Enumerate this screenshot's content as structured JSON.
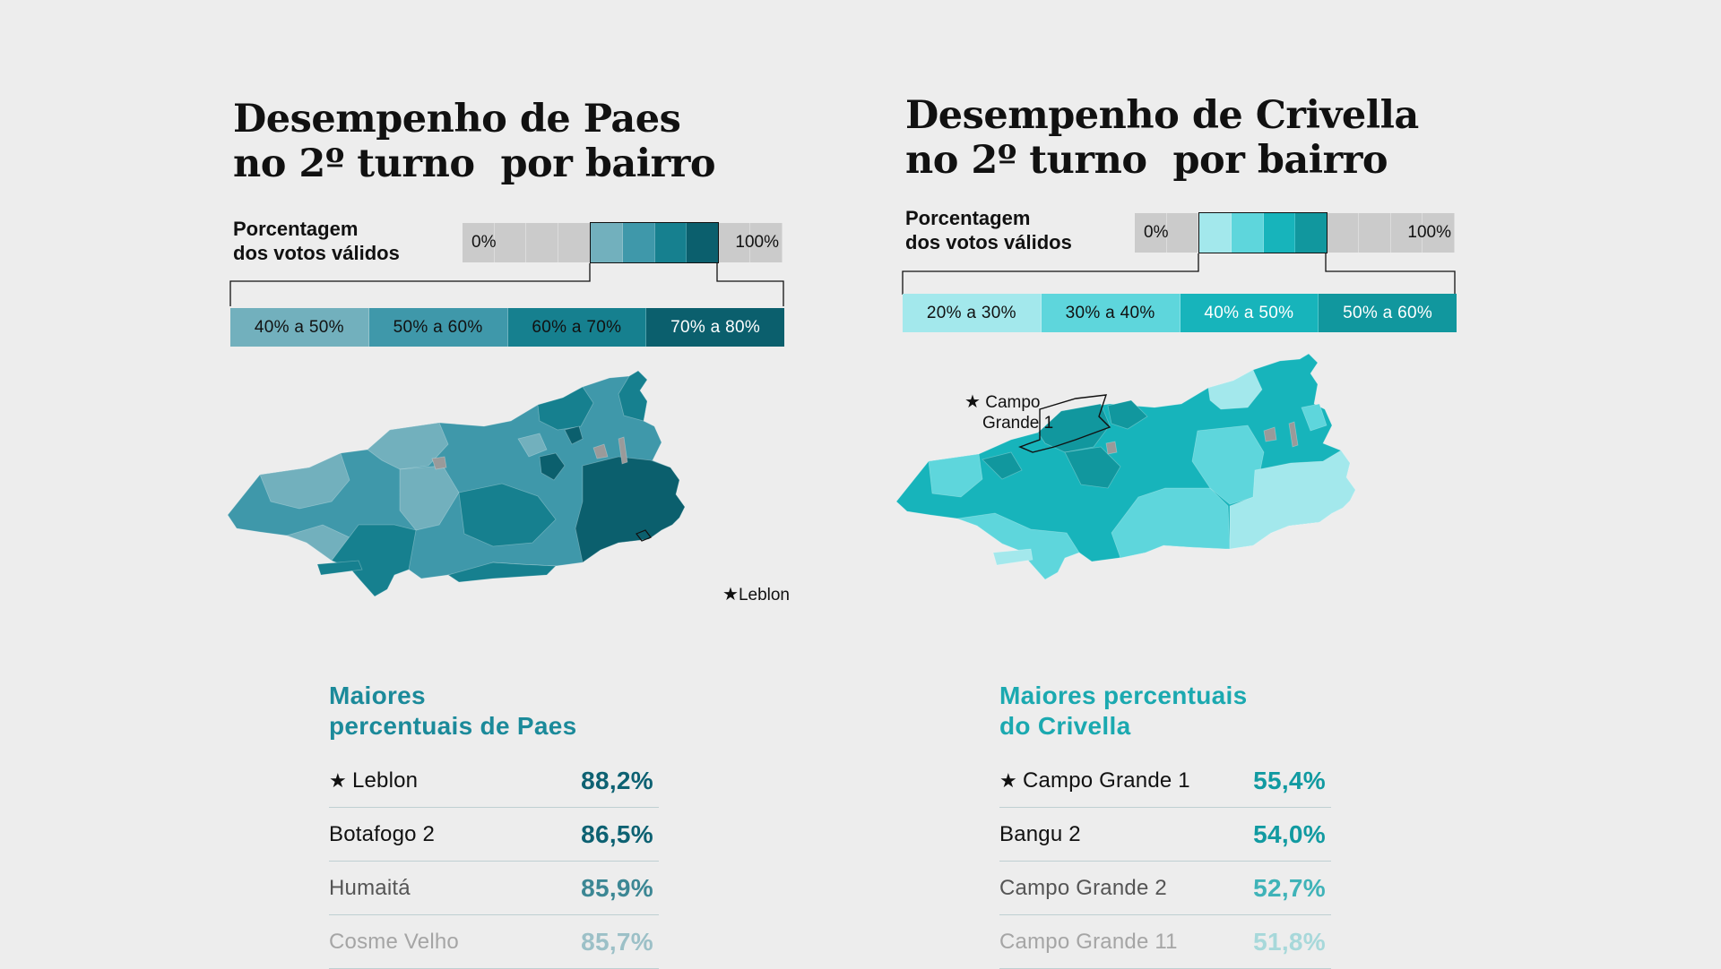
{
  "panels": {
    "paes": {
      "title_lines": [
        "Desempenho de Paes",
        "no 2º turno  por bairro"
      ],
      "legend_label_lines": [
        "Porcentagem",
        "dos votos válidos"
      ],
      "scale_low": "0%",
      "scale_high": "100%",
      "bins": [
        {
          "label": "40% a 50%",
          "color": "#72b0bd",
          "text_color": "#111111"
        },
        {
          "label": "50% a 60%",
          "color": "#3f98aa",
          "text_color": "#111111"
        },
        {
          "label": "60% a 70%",
          "color": "#16808f",
          "text_color": "#111111"
        },
        {
          "label": "70% a 80%",
          "color": "#0b5f6d",
          "text_color": "#ffffff"
        }
      ],
      "map_labels": [
        {
          "marker": "★",
          "lines": [
            "Leblon"
          ]
        }
      ],
      "list_title_lines": [
        "Maiores",
        "percentuais de Paes"
      ],
      "list_title_color": "#1b8a9a",
      "ranking": [
        {
          "marker": "★",
          "name": "Leblon",
          "value": "88,2%",
          "name_color": "#111111",
          "value_color": "#0d6172"
        },
        {
          "marker": "",
          "name": "Botafogo 2",
          "value": "86,5%",
          "name_color": "#111111",
          "value_color": "#0d6172"
        },
        {
          "marker": "",
          "name": "Humaitá",
          "value": "85,9%",
          "name_color": "#555555",
          "value_color": "#3c8794"
        },
        {
          "marker": "",
          "name": "Cosme Velho",
          "value": "85,7%",
          "name_color": "#a5a5a5",
          "value_color": "#9cc0c7"
        }
      ]
    },
    "crivella": {
      "title_lines": [
        "Desempenho de Crivella",
        "no 2º turno  por bairro"
      ],
      "legend_label_lines": [
        "Porcentagem",
        "dos votos válidos"
      ],
      "scale_low": "0%",
      "scale_high": "100%",
      "bins": [
        {
          "label": "20% a 30%",
          "color": "#a3e8ec",
          "text_color": "#111111"
        },
        {
          "label": "30% a 40%",
          "color": "#5ed6dc",
          "text_color": "#111111"
        },
        {
          "label": "40% a 50%",
          "color": "#17b4bb",
          "text_color": "#ffffff"
        },
        {
          "label": "50% a 60%",
          "color": "#11979e",
          "text_color": "#ffffff"
        }
      ],
      "map_labels": [
        {
          "marker": "★",
          "lines": [
            "Campo",
            "Grande 1"
          ]
        }
      ],
      "list_title_lines": [
        "Maiores percentuais",
        "do Crivella"
      ],
      "list_title_color": "#1ba9b0",
      "ranking": [
        {
          "marker": "★",
          "name": "Campo Grande 1",
          "value": "55,4%",
          "name_color": "#111111",
          "value_color": "#119aa1"
        },
        {
          "marker": "",
          "name": "Bangu 2",
          "value": "54,0%",
          "name_color": "#111111",
          "value_color": "#119aa1"
        },
        {
          "marker": "",
          "name": "Campo Grande 2",
          "value": "52,7%",
          "name_color": "#555555",
          "value_color": "#3fb3b8"
        },
        {
          "marker": "",
          "name": "Campo Grande 11",
          "value": "51,8%",
          "name_color": "#a5a5a5",
          "value_color": "#a7d8da"
        }
      ]
    }
  }
}
